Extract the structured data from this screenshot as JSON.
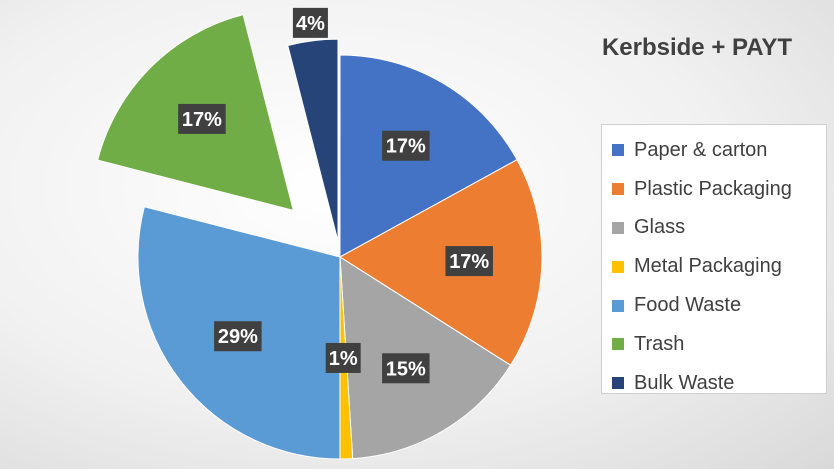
{
  "chart_data": {
    "type": "pie",
    "title": "Kerbside + PAYT",
    "legend_position": "right",
    "exploded": [
      "Trash",
      "Bulk Waste"
    ],
    "slices": [
      {
        "label": "Paper & carton",
        "value": 17,
        "value_label": "17%",
        "color": "#4472C4"
      },
      {
        "label": "Plastic Packaging",
        "value": 17,
        "value_label": "17%",
        "color": "#ED7D31"
      },
      {
        "label": "Glass",
        "value": 15,
        "value_label": "15%",
        "color": "#A5A5A5"
      },
      {
        "label": "Metal Packaging",
        "value": 1,
        "value_label": "1%",
        "color": "#FFC000"
      },
      {
        "label": "Food Waste",
        "value": 29,
        "value_label": "29%",
        "color": "#5B9BD5"
      },
      {
        "label": "Trash",
        "value": 17,
        "value_label": "17%",
        "color": "#70AD47"
      },
      {
        "label": "Bulk Waste",
        "value": 4,
        "value_label": "4%",
        "color": "#264478"
      }
    ]
  }
}
